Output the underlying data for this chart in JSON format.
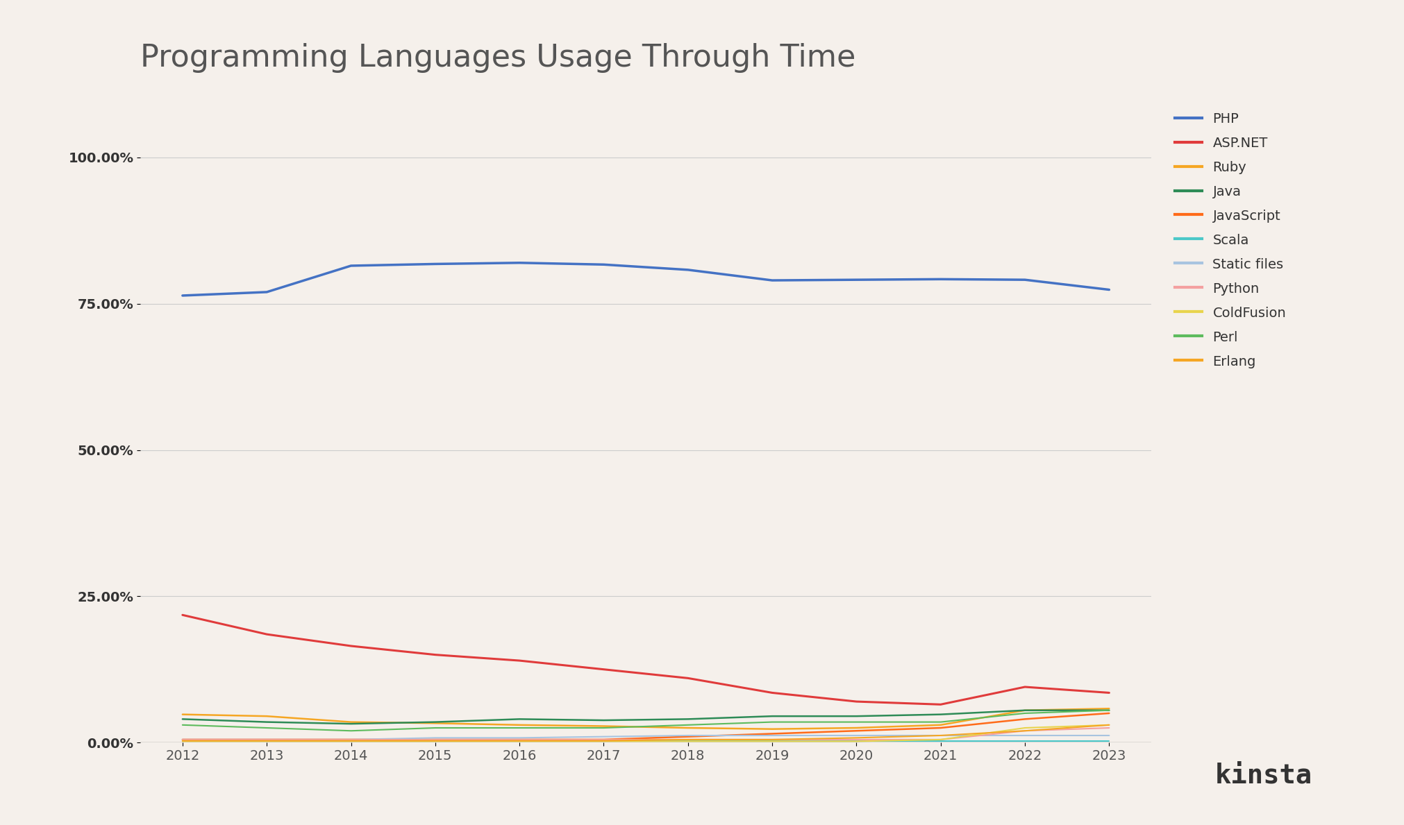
{
  "title": "Programming Languages Usage Through Time",
  "background_color": "#f5f0eb",
  "years": [
    2012,
    2013,
    2014,
    2015,
    2016,
    2017,
    2018,
    2019,
    2020,
    2021,
    2022,
    2023
  ],
  "series": {
    "PHP": {
      "color": "#4472C4",
      "linewidth": 2.5,
      "data": [
        76.4,
        77.0,
        81.5,
        81.8,
        82.0,
        81.7,
        80.8,
        79.0,
        79.1,
        79.2,
        79.1,
        77.4
      ]
    },
    "ASP.NET": {
      "color": "#E03B3B",
      "linewidth": 2.2,
      "data": [
        21.8,
        18.5,
        16.5,
        15.0,
        14.0,
        12.5,
        11.0,
        8.5,
        7.0,
        6.5,
        9.5,
        8.5
      ]
    },
    "Ruby": {
      "color": "#F5A623",
      "linewidth": 1.8,
      "data": [
        4.8,
        4.5,
        3.5,
        3.3,
        3.0,
        2.8,
        2.5,
        2.3,
        2.5,
        3.0,
        5.5,
        5.8
      ]
    },
    "Java": {
      "color": "#2E8B57",
      "linewidth": 1.8,
      "data": [
        4.0,
        3.5,
        3.2,
        3.5,
        4.0,
        3.8,
        4.0,
        4.5,
        4.5,
        4.8,
        5.5,
        5.5
      ]
    },
    "JavaScript": {
      "color": "#FF6B1A",
      "linewidth": 1.8,
      "data": [
        0.5,
        0.5,
        0.5,
        0.5,
        0.5,
        0.5,
        1.0,
        1.5,
        2.0,
        2.5,
        4.0,
        5.0
      ]
    },
    "Scala": {
      "color": "#4BC8C8",
      "linewidth": 1.5,
      "data": [
        0.3,
        0.3,
        0.3,
        0.3,
        0.3,
        0.3,
        0.3,
        0.3,
        0.3,
        0.3,
        0.3,
        0.3
      ]
    },
    "Static files": {
      "color": "#A8C4E0",
      "linewidth": 1.5,
      "data": [
        0.5,
        0.5,
        0.5,
        0.8,
        0.8,
        1.0,
        1.2,
        1.2,
        1.2,
        1.2,
        1.2,
        1.2
      ]
    },
    "Python": {
      "color": "#F4A0A0",
      "linewidth": 1.5,
      "data": [
        0.5,
        0.5,
        0.5,
        0.5,
        0.5,
        0.5,
        0.5,
        0.5,
        0.5,
        0.5,
        2.0,
        2.5
      ]
    },
    "ColdFusion": {
      "color": "#E8D44D",
      "linewidth": 1.5,
      "data": [
        0.2,
        0.2,
        0.2,
        0.2,
        0.2,
        0.2,
        0.2,
        0.2,
        0.2,
        0.5,
        2.5,
        3.0
      ]
    },
    "Perl": {
      "color": "#5DBB5D",
      "linewidth": 1.5,
      "data": [
        3.0,
        2.5,
        2.0,
        2.5,
        2.5,
        2.5,
        3.0,
        3.5,
        3.5,
        3.5,
        5.0,
        5.5
      ]
    },
    "Erlang": {
      "color": "#F5A623",
      "linewidth": 1.5,
      "data": [
        0.3,
        0.3,
        0.3,
        0.3,
        0.3,
        0.3,
        0.5,
        0.5,
        0.8,
        1.2,
        2.0,
        3.0
      ]
    }
  },
  "ylim": [
    0,
    110
  ],
  "yticks": [
    0,
    25,
    50,
    75,
    100
  ],
  "ytick_labels": [
    "0.00%",
    "25.00%",
    "50.00%",
    "75.00%",
    "100.00%"
  ],
  "xlim": [
    2011.5,
    2023.5
  ],
  "xticks": [
    2012,
    2013,
    2014,
    2015,
    2016,
    2017,
    2018,
    2019,
    2020,
    2021,
    2022,
    2023
  ],
  "legend_fontsize": 14,
  "title_fontsize": 32,
  "tick_fontsize": 14,
  "kinsta_text": "kinsta",
  "kinsta_color": "#333333",
  "kinsta_fontsize": 28
}
